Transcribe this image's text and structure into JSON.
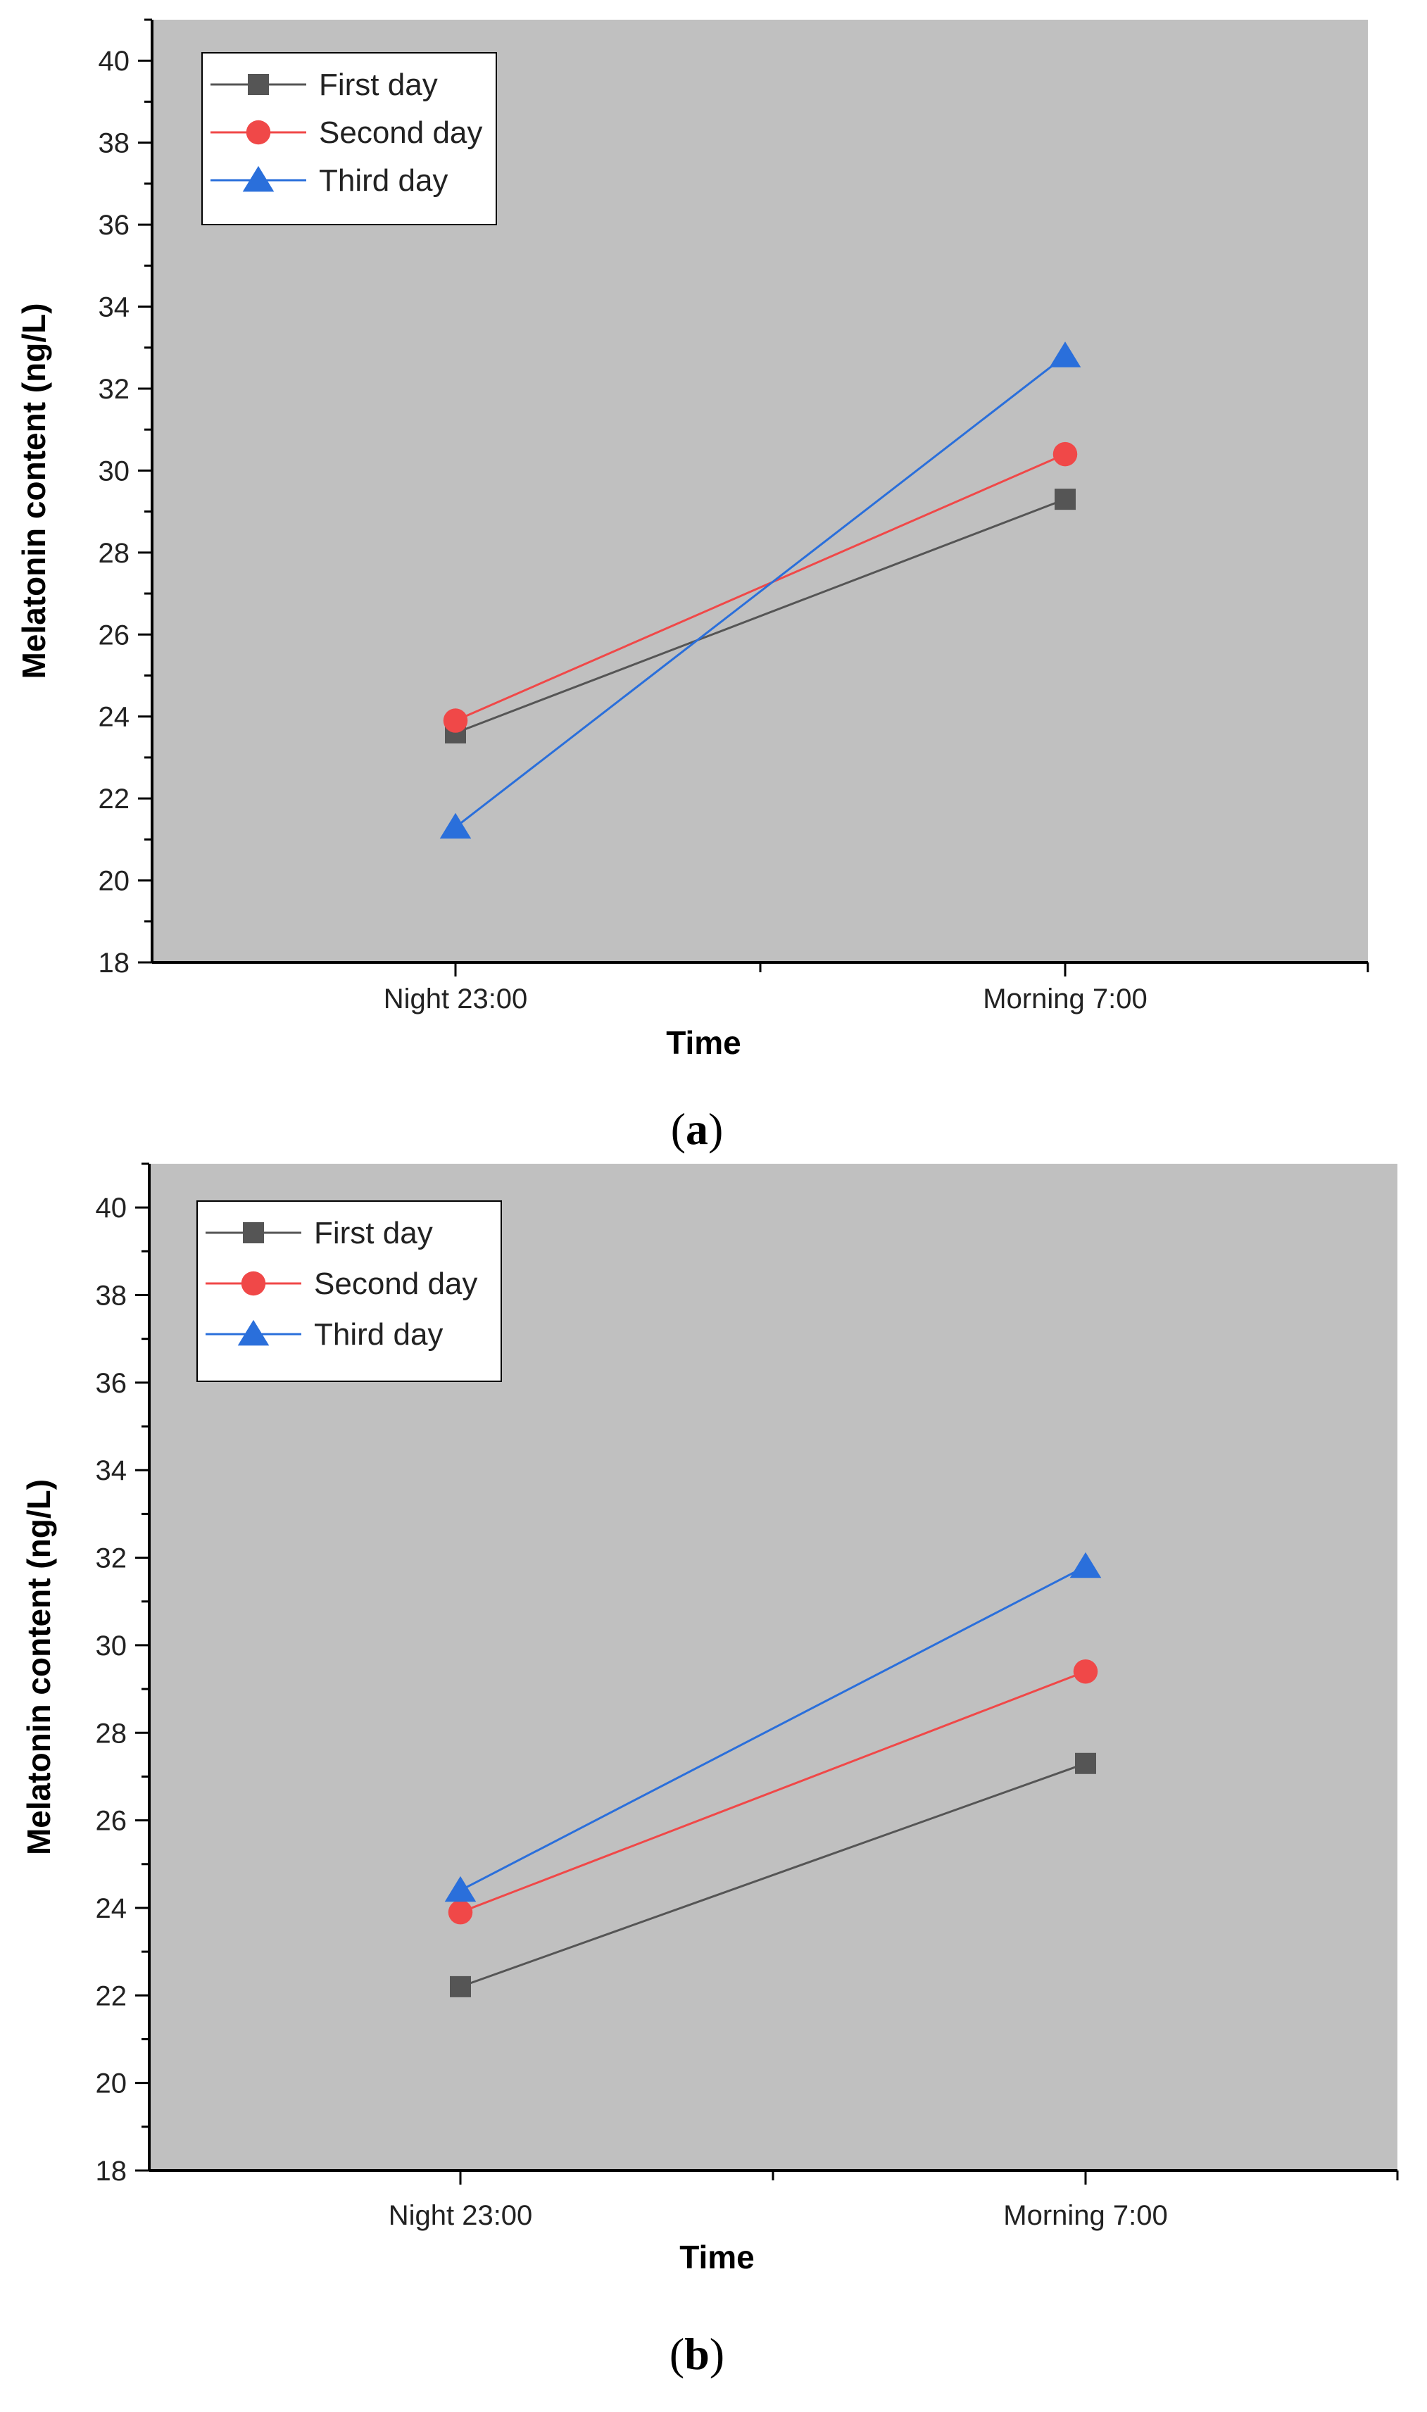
{
  "chart_data": [
    {
      "type": "line",
      "panel_label": "a",
      "title": "",
      "xlabel": "Time",
      "ylabel": "Melatonin content  (ng/L)",
      "categories": [
        "Night 23:00",
        "Morning 7:00"
      ],
      "ylim": [
        18,
        41
      ],
      "yticks": [
        18,
        20,
        22,
        24,
        26,
        28,
        30,
        32,
        34,
        36,
        38,
        40
      ],
      "legend_position": "top-left",
      "series": [
        {
          "name": "First day",
          "marker": "square",
          "color": "#555555",
          "values": [
            23.6,
            29.3
          ]
        },
        {
          "name": "Second day",
          "marker": "circle",
          "color": "#f04848",
          "values": [
            23.9,
            30.4
          ]
        },
        {
          "name": "Third day",
          "marker": "triangle",
          "color": "#2a6fdb",
          "values": [
            21.3,
            32.8
          ]
        }
      ]
    },
    {
      "type": "line",
      "panel_label": "b",
      "title": "",
      "xlabel": "Time",
      "ylabel": "Melatonin content  (ng/L)",
      "categories": [
        "Night 23:00",
        "Morning 7:00"
      ],
      "ylim": [
        18,
        41
      ],
      "yticks": [
        18,
        20,
        22,
        24,
        26,
        28,
        30,
        32,
        34,
        36,
        38,
        40
      ],
      "legend_position": "top-left",
      "series": [
        {
          "name": "First day",
          "marker": "square",
          "color": "#555555",
          "values": [
            22.2,
            27.3
          ]
        },
        {
          "name": "Second day",
          "marker": "circle",
          "color": "#f04848",
          "values": [
            23.9,
            29.4
          ]
        },
        {
          "name": "Third day",
          "marker": "triangle",
          "color": "#2a6fdb",
          "values": [
            24.4,
            31.8
          ]
        }
      ]
    }
  ],
  "colors": {
    "plot_background": "#c0c0c0",
    "axis": "#000000",
    "legend_background": "#ffffff"
  }
}
